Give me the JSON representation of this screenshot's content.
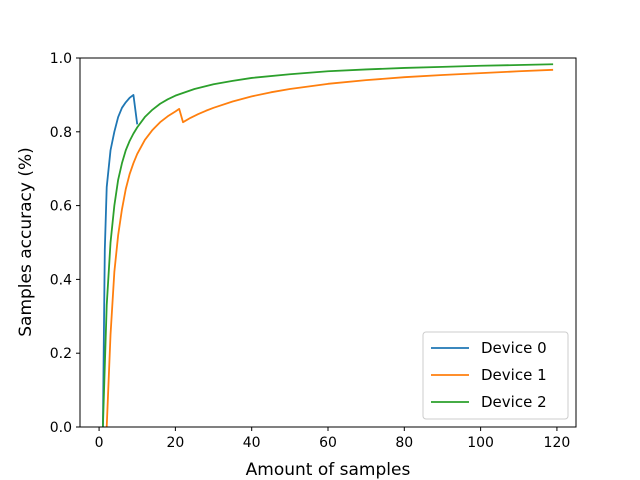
{
  "chart_data": {
    "type": "line",
    "title": "",
    "xlabel": "Amount of samples",
    "ylabel": "Samples accuracy (%)",
    "xlim": [
      -5,
      125
    ],
    "ylim": [
      0.0,
      1.0
    ],
    "x_ticks": [
      0,
      20,
      40,
      60,
      80,
      100,
      120
    ],
    "y_ticks": [
      0.0,
      0.2,
      0.4,
      0.6,
      0.8,
      1.0
    ],
    "x_tick_labels": [
      "0",
      "20",
      "40",
      "60",
      "80",
      "100",
      "120"
    ],
    "y_tick_labels": [
      "0.0",
      "0.2",
      "0.4",
      "0.6",
      "0.8",
      "1.0"
    ],
    "grid": false,
    "legend_position": "lower-right",
    "series": [
      {
        "name": "Device 0",
        "color": "#1f77b4",
        "x": [
          1,
          1.5,
          2,
          3,
          4,
          5,
          6,
          7,
          8,
          9,
          10
        ],
        "y": [
          0.0,
          0.48,
          0.65,
          0.75,
          0.8,
          0.84,
          0.865,
          0.88,
          0.892,
          0.9,
          0.82
        ]
      },
      {
        "name": "Device 1",
        "color": "#ff7f0e",
        "x": [
          2,
          3,
          4,
          5,
          6,
          7,
          8,
          9,
          10,
          12,
          14,
          16,
          18,
          20,
          21,
          22,
          24,
          26,
          28,
          30,
          35,
          40,
          45,
          50,
          60,
          70,
          80,
          90,
          100,
          110,
          119
        ],
        "y": [
          0.0,
          0.25,
          0.42,
          0.52,
          0.59,
          0.645,
          0.685,
          0.715,
          0.74,
          0.778,
          0.805,
          0.826,
          0.842,
          0.855,
          0.862,
          0.826,
          0.838,
          0.848,
          0.857,
          0.865,
          0.882,
          0.896,
          0.907,
          0.916,
          0.93,
          0.94,
          0.948,
          0.954,
          0.959,
          0.964,
          0.968
        ]
      },
      {
        "name": "Device 2",
        "color": "#2ca02c",
        "x": [
          1,
          2,
          3,
          4,
          5,
          6,
          7,
          8,
          9,
          10,
          12,
          14,
          16,
          18,
          20,
          25,
          30,
          35,
          40,
          50,
          60,
          70,
          80,
          90,
          100,
          110,
          119
        ],
        "y": [
          0.0,
          0.33,
          0.5,
          0.6,
          0.67,
          0.715,
          0.75,
          0.775,
          0.795,
          0.812,
          0.84,
          0.86,
          0.876,
          0.888,
          0.898,
          0.916,
          0.929,
          0.938,
          0.946,
          0.956,
          0.964,
          0.969,
          0.973,
          0.976,
          0.979,
          0.981,
          0.983
        ]
      }
    ]
  }
}
